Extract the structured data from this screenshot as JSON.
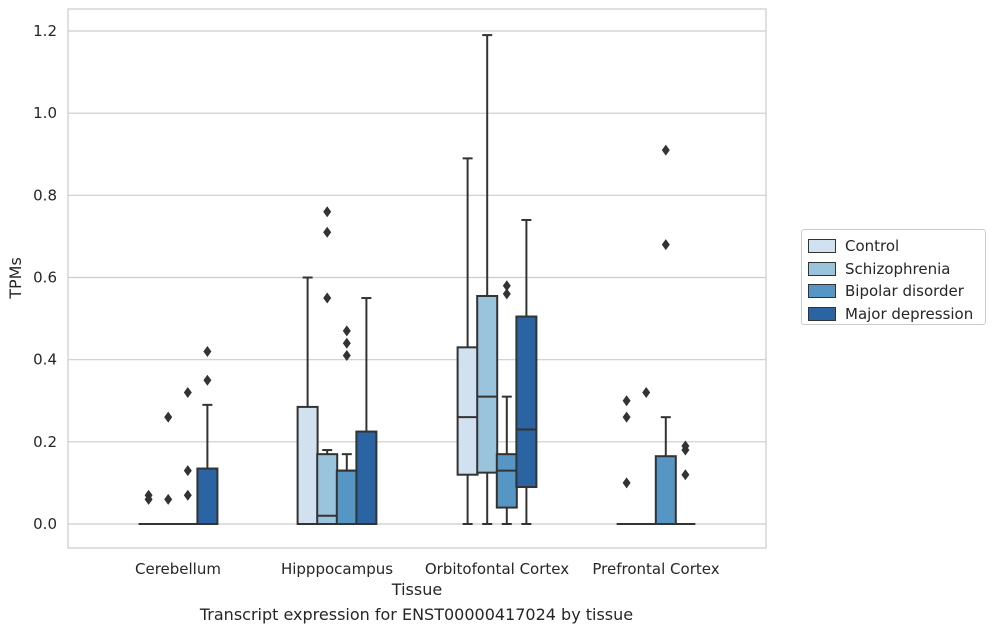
{
  "caption": "Transcript expression for ENST00000417024 by tissue",
  "colors": {
    "Control": "#d1e1f0",
    "Schizophrenia": "#9ac3dc",
    "Bipolar disorder": "#5596c5",
    "Major depression": "#2a64a2",
    "outline": "#333333",
    "grid": "#cccccc"
  },
  "chart_data": {
    "type": "box",
    "xlabel": "Tissue",
    "ylabel": "TPMs",
    "ylim": [
      -0.06,
      1.25
    ],
    "yticks": [
      "0.0",
      "0.2",
      "0.4",
      "0.6",
      "0.8",
      "1.0",
      "1.2"
    ],
    "categories": [
      "Cerebellum",
      "Hipppocampus",
      "Orbitofontal Cortex",
      "Prefrontal Cortex"
    ],
    "grid": "horizontal",
    "legend_position": "right",
    "series": [
      {
        "name": "Control",
        "boxes": [
          {
            "min": 0,
            "q1": 0,
            "median": 0,
            "q3": 0,
            "max": 0,
            "outliers": [
              0.06,
              0.07
            ]
          },
          {
            "min": 0,
            "q1": 0,
            "median": 0,
            "q3": 0.285,
            "max": 0.6,
            "outliers": []
          },
          {
            "min": 0,
            "q1": 0.12,
            "median": 0.26,
            "q3": 0.43,
            "max": 0.89,
            "outliers": []
          },
          {
            "min": 0,
            "q1": 0,
            "median": 0,
            "q3": 0,
            "max": 0,
            "outliers": [
              0.1,
              0.26,
              0.3
            ]
          }
        ]
      },
      {
        "name": "Schizophrenia",
        "boxes": [
          {
            "min": 0,
            "q1": 0,
            "median": 0,
            "q3": 0,
            "max": 0,
            "outliers": [
              0.06,
              0.26
            ]
          },
          {
            "min": 0,
            "q1": 0,
            "median": 0.02,
            "q3": 0.17,
            "max": 0.18,
            "outliers": [
              0.55,
              0.71,
              0.76
            ]
          },
          {
            "min": 0,
            "q1": 0.125,
            "median": 0.31,
            "q3": 0.555,
            "max": 1.19,
            "outliers": []
          },
          {
            "min": 0,
            "q1": 0,
            "median": 0,
            "q3": 0,
            "max": 0,
            "outliers": [
              0.32
            ]
          }
        ]
      },
      {
        "name": "Bipolar disorder",
        "boxes": [
          {
            "min": 0,
            "q1": 0,
            "median": 0,
            "q3": 0,
            "max": 0,
            "outliers": [
              0.07,
              0.13,
              0.32
            ]
          },
          {
            "min": 0,
            "q1": 0,
            "median": 0.13,
            "q3": 0.13,
            "max": 0.17,
            "outliers": [
              0.41,
              0.44,
              0.47
            ]
          },
          {
            "min": 0,
            "q1": 0.04,
            "median": 0.13,
            "q3": 0.17,
            "max": 0.31,
            "outliers": [
              0.56,
              0.58
            ]
          },
          {
            "min": 0,
            "q1": 0,
            "median": 0,
            "q3": 0.165,
            "max": 0.26,
            "outliers": [
              0.68,
              0.91
            ]
          }
        ]
      },
      {
        "name": "Major depression",
        "boxes": [
          {
            "min": 0,
            "q1": 0,
            "median": 0,
            "q3": 0.135,
            "max": 0.29,
            "outliers": [
              0.35,
              0.42
            ]
          },
          {
            "min": 0,
            "q1": 0,
            "median": 0,
            "q3": 0.225,
            "max": 0.55,
            "outliers": []
          },
          {
            "min": 0,
            "q1": 0.09,
            "median": 0.23,
            "q3": 0.505,
            "max": 0.74,
            "outliers": []
          },
          {
            "min": 0,
            "q1": 0,
            "median": 0,
            "q3": 0,
            "max": 0,
            "outliers": [
              0.12,
              0.18,
              0.19
            ]
          }
        ]
      }
    ]
  }
}
